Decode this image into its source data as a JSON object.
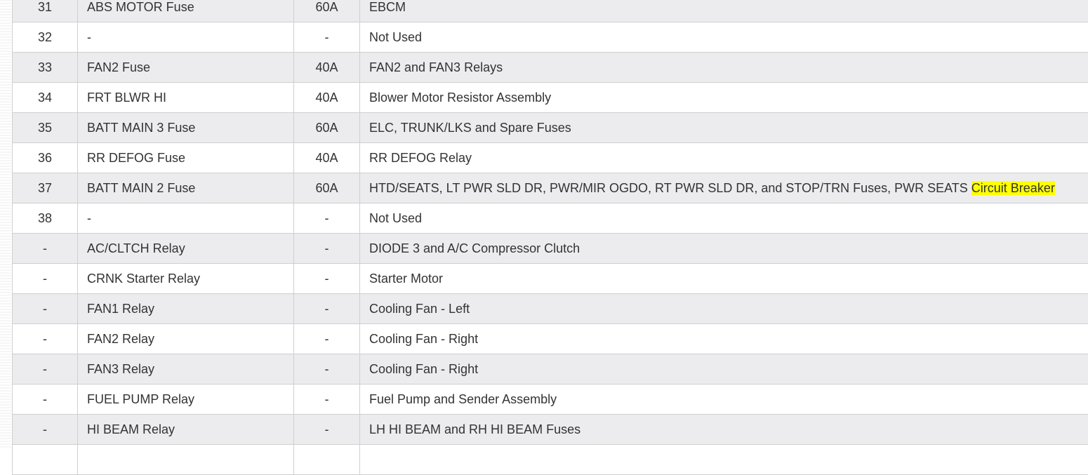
{
  "rows": [
    {
      "no": "31",
      "name": "ABS MOTOR Fuse",
      "rating": "60A",
      "usage": "EBCM"
    },
    {
      "no": "32",
      "name": "-",
      "rating": "-",
      "usage": "Not Used"
    },
    {
      "no": "33",
      "name": "FAN2 Fuse",
      "rating": "40A",
      "usage": "FAN2 and FAN3 Relays"
    },
    {
      "no": "34",
      "name": "FRT BLWR HI",
      "rating": "40A",
      "usage": "Blower Motor Resistor Assembly"
    },
    {
      "no": "35",
      "name": "BATT MAIN 3 Fuse",
      "rating": "60A",
      "usage": "ELC, TRUNK/LKS and Spare Fuses"
    },
    {
      "no": "36",
      "name": "RR DEFOG Fuse",
      "rating": "40A",
      "usage": "RR DEFOG Relay"
    },
    {
      "no": "37",
      "name": "BATT MAIN 2 Fuse",
      "rating": "60A",
      "usage": "HTD/SEATS, LT PWR SLD DR, PWR/MIR OGDO, RT PWR SLD DR, and STOP/TRN Fuses, PWR SEATS ",
      "highlight": "Circuit Breaker"
    },
    {
      "no": "38",
      "name": "-",
      "rating": "-",
      "usage": "Not Used"
    },
    {
      "no": "-",
      "name": "AC/CLTCH Relay",
      "rating": "-",
      "usage": "DIODE 3 and A/C Compressor Clutch"
    },
    {
      "no": "-",
      "name": "CRNK Starter Relay",
      "rating": "-",
      "usage": "Starter Motor"
    },
    {
      "no": "-",
      "name": "FAN1 Relay",
      "rating": "-",
      "usage": "Cooling Fan - Left"
    },
    {
      "no": "-",
      "name": "FAN2 Relay",
      "rating": "-",
      "usage": "Cooling Fan - Right"
    },
    {
      "no": "-",
      "name": "FAN3 Relay",
      "rating": "-",
      "usage": "Cooling Fan - Right"
    },
    {
      "no": "-",
      "name": "FUEL PUMP Relay",
      "rating": "-",
      "usage": "Fuel Pump and Sender Assembly"
    },
    {
      "no": "-",
      "name": "HI BEAM Relay",
      "rating": "-",
      "usage": "LH HI BEAM and RH HI BEAM Fuses"
    },
    {
      "no": "",
      "name": "",
      "rating": "",
      "usage": ""
    }
  ],
  "highlight_color": "#ffff00"
}
